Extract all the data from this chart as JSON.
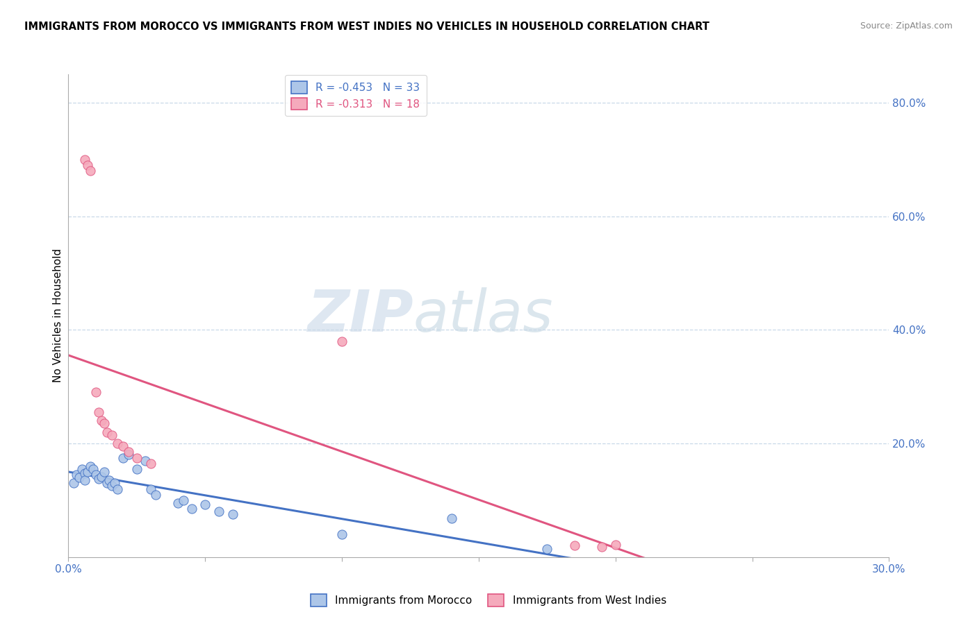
{
  "title": "IMMIGRANTS FROM MOROCCO VS IMMIGRANTS FROM WEST INDIES NO VEHICLES IN HOUSEHOLD CORRELATION CHART",
  "source": "Source: ZipAtlas.com",
  "ylabel": "No Vehicles in Household",
  "legend_morocco": "Immigrants from Morocco",
  "legend_west_indies": "Immigrants from West Indies",
  "r_morocco": -0.453,
  "n_morocco": 33,
  "r_west_indies": -0.313,
  "n_west_indies": 18,
  "color_morocco": "#adc6e8",
  "color_west_indies": "#f5aabc",
  "line_color_morocco": "#4472c4",
  "line_color_west_indies": "#e05580",
  "xlim": [
    0.0,
    0.3
  ],
  "ylim": [
    0.0,
    0.85
  ],
  "background_color": "#ffffff",
  "grid_color": "#c8d8e8",
  "watermark_zip": "ZIP",
  "watermark_atlas": "atlas",
  "title_fontsize": 10.5,
  "axis_label_color": "#4472c4",
  "morocco_x": [
    0.002,
    0.003,
    0.004,
    0.005,
    0.006,
    0.006,
    0.007,
    0.008,
    0.009,
    0.01,
    0.011,
    0.012,
    0.013,
    0.014,
    0.015,
    0.016,
    0.017,
    0.018,
    0.02,
    0.022,
    0.025,
    0.028,
    0.03,
    0.032,
    0.04,
    0.042,
    0.045,
    0.05,
    0.055,
    0.06,
    0.1,
    0.14,
    0.175
  ],
  "morocco_y": [
    0.13,
    0.145,
    0.14,
    0.155,
    0.148,
    0.135,
    0.15,
    0.16,
    0.155,
    0.145,
    0.138,
    0.142,
    0.15,
    0.13,
    0.135,
    0.125,
    0.13,
    0.12,
    0.175,
    0.18,
    0.155,
    0.17,
    0.12,
    0.11,
    0.095,
    0.1,
    0.085,
    0.092,
    0.08,
    0.075,
    0.04,
    0.068,
    0.015
  ],
  "west_indies_x": [
    0.006,
    0.007,
    0.008,
    0.01,
    0.011,
    0.012,
    0.013,
    0.014,
    0.016,
    0.018,
    0.02,
    0.022,
    0.025,
    0.03,
    0.1,
    0.185,
    0.195,
    0.2
  ],
  "west_indies_y": [
    0.7,
    0.69,
    0.68,
    0.29,
    0.255,
    0.24,
    0.235,
    0.22,
    0.215,
    0.2,
    0.195,
    0.185,
    0.175,
    0.165,
    0.38,
    0.02,
    0.018,
    0.022
  ]
}
